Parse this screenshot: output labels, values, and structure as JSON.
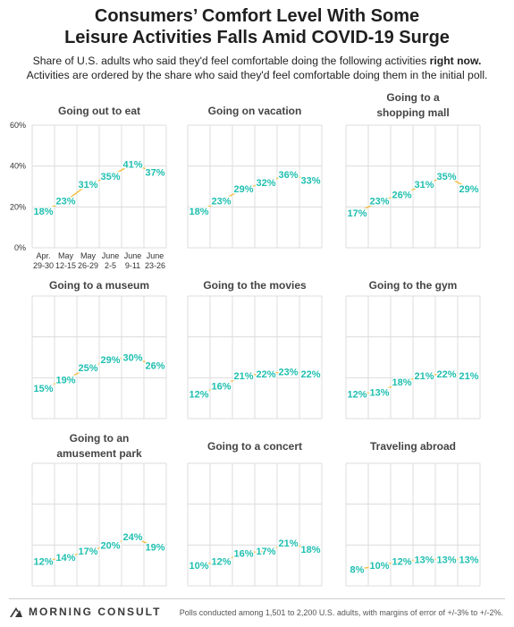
{
  "header": {
    "title_line1": "Consumers’ Comfort Level With Some",
    "title_line2": "Leisure Activities Falls Amid COVID-19 Surge",
    "subtitle_line1_pre": "Share of U.S. adults who said they'd feel comfortable doing the following activities ",
    "subtitle_line1_bold": "right now.",
    "subtitle_line2": "Activities are ordered by the share who said they'd feel comfortable doing them in the initial poll."
  },
  "footer": {
    "brand": "MORNING CONSULT",
    "note": "Polls conducted among 1,501 to 2,200 U.S. adults, with margins of error of +/-3% to +/-2%."
  },
  "colors": {
    "point_label": "#1fbfb0",
    "line": "#f2c14a",
    "grid": "#dcdcdc",
    "axis_text": "#333333",
    "panel_title": "#444444"
  },
  "chart_data": {
    "type": "line",
    "categories": [
      "Apr. 29-30",
      "May 12-15",
      "May 26-29",
      "June 2-5",
      "June 9-11",
      "June 23-26"
    ],
    "category_label_lines": [
      [
        "Apr.",
        "29-30"
      ],
      [
        "May",
        "12-15"
      ],
      [
        "May",
        "26-29"
      ],
      [
        "June",
        "2-5"
      ],
      [
        "June",
        "9-11"
      ],
      [
        "June",
        "23-26"
      ]
    ],
    "y_tick_labels": [
      "60%",
      "40%",
      "20%",
      "0%"
    ],
    "ylim": [
      0,
      60
    ],
    "grid": true,
    "panels": [
      {
        "title": [
          "Going out to eat"
        ],
        "values": [
          18,
          23,
          31,
          35,
          41,
          37
        ],
        "value_labels": [
          "18%",
          "23%",
          "31%",
          "35%",
          "41%",
          "37%"
        ]
      },
      {
        "title": [
          "Going on vacation"
        ],
        "values": [
          18,
          23,
          29,
          32,
          36,
          33
        ],
        "value_labels": [
          "18%",
          "23%",
          "29%",
          "32%",
          "36%",
          "33%"
        ]
      },
      {
        "title": [
          "Going to a",
          "shopping mall"
        ],
        "values": [
          17,
          23,
          26,
          31,
          35,
          29
        ],
        "value_labels": [
          "17%",
          "23%",
          "26%",
          "31%",
          "35%",
          "29%"
        ]
      },
      {
        "title": [
          "Going to a museum"
        ],
        "values": [
          15,
          19,
          25,
          29,
          30,
          26
        ],
        "value_labels": [
          "15%",
          "19%",
          "25%",
          "29%",
          "30%",
          "26%"
        ]
      },
      {
        "title": [
          "Going to the movies"
        ],
        "values": [
          12,
          16,
          21,
          22,
          23,
          22
        ],
        "value_labels": [
          "12%",
          "16%",
          "21%",
          "22%",
          "23%",
          "22%"
        ]
      },
      {
        "title": [
          "Going to the gym"
        ],
        "values": [
          12,
          13,
          18,
          21,
          22,
          21
        ],
        "value_labels": [
          "12%",
          "13%",
          "18%",
          "21%",
          "22%",
          "21%"
        ]
      },
      {
        "title": [
          "Going to an",
          "amusement park"
        ],
        "values": [
          12,
          14,
          17,
          20,
          24,
          19
        ],
        "value_labels": [
          "12%",
          "14%",
          "17%",
          "20%",
          "24%",
          "19%"
        ]
      },
      {
        "title": [
          "Going to a concert"
        ],
        "values": [
          10,
          12,
          16,
          17,
          21,
          18
        ],
        "value_labels": [
          "10%",
          "12%",
          "16%",
          "17%",
          "21%",
          "18%"
        ]
      },
      {
        "title": [
          "Traveling abroad"
        ],
        "values": [
          8,
          10,
          12,
          13,
          13,
          13
        ],
        "value_labels": [
          "8%",
          "10%",
          "12%",
          "13%",
          "13%",
          "13%"
        ]
      }
    ]
  }
}
